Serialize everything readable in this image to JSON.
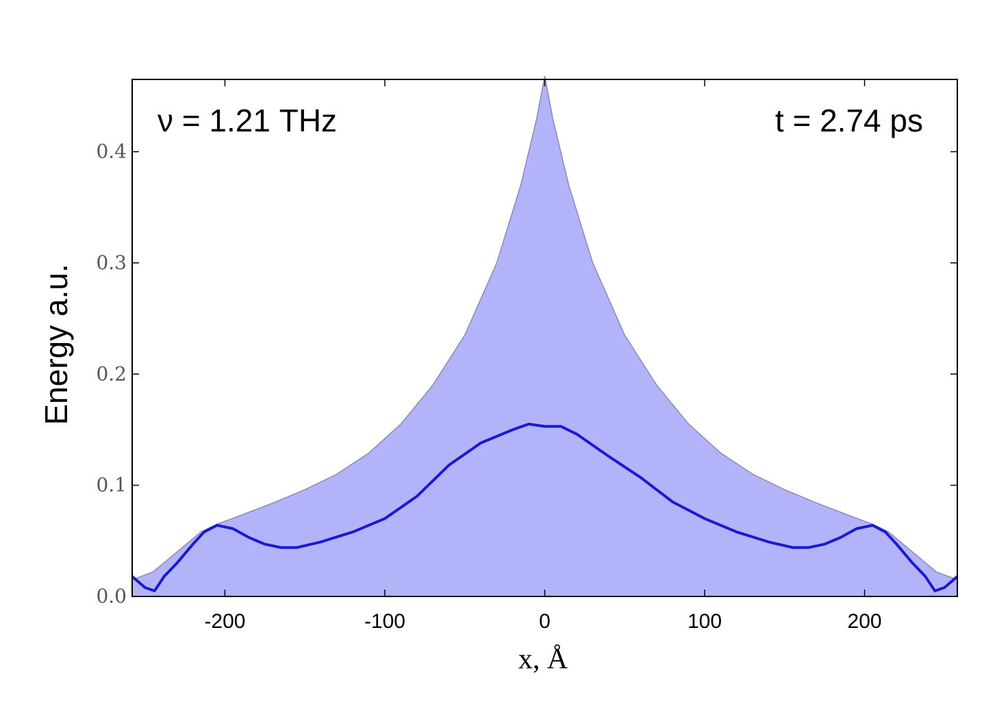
{
  "chart_data": {
    "type": "area",
    "xlabel": "x, Å",
    "ylabel": "Energy a.u.",
    "xlim": [
      -258,
      258
    ],
    "ylim": [
      0,
      0.465
    ],
    "x_ticks": [
      -200,
      -100,
      0,
      100,
      200
    ],
    "x_tick_labels": [
      "-200",
      "-100",
      "0",
      "100",
      "200"
    ],
    "y_ticks": [
      0.0,
      0.1,
      0.2,
      0.3,
      0.4
    ],
    "y_tick_labels": [
      "0.0",
      "0.1",
      "0.2",
      "0.3",
      "0.4"
    ],
    "grid": false,
    "annotations": {
      "frequency": "ν = 1.21 THz",
      "time": "t = 2.74 ps"
    },
    "colors": {
      "fill": "#b3b3fa",
      "envelope_edge": "#8a8ab4",
      "line": "#1a1ad2"
    },
    "series": [
      {
        "kind": "envelope",
        "x": [
          -258,
          -245,
          -230,
          -215,
          -205,
          -190,
          -170,
          -150,
          -130,
          -110,
          -90,
          -70,
          -50,
          -30,
          -15,
          -5,
          0,
          5,
          15,
          30,
          50,
          70,
          90,
          110,
          130,
          150,
          170,
          190,
          205,
          215,
          230,
          245,
          258
        ],
        "y": [
          0.015,
          0.022,
          0.04,
          0.058,
          0.065,
          0.073,
          0.084,
          0.096,
          0.11,
          0.129,
          0.155,
          0.19,
          0.235,
          0.3,
          0.37,
          0.43,
          0.468,
          0.43,
          0.37,
          0.3,
          0.235,
          0.19,
          0.155,
          0.129,
          0.11,
          0.096,
          0.084,
          0.073,
          0.065,
          0.058,
          0.04,
          0.022,
          0.015
        ]
      },
      {
        "kind": "line",
        "x": [
          -258,
          -250,
          -244,
          -238,
          -230,
          -220,
          -213,
          -205,
          -195,
          -185,
          -175,
          -165,
          -155,
          -140,
          -120,
          -100,
          -80,
          -60,
          -40,
          -20,
          -10,
          0,
          10,
          20,
          40,
          60,
          80,
          100,
          120,
          140,
          155,
          165,
          175,
          185,
          195,
          205,
          213,
          220,
          230,
          238,
          244,
          250,
          258
        ],
        "y": [
          0.018,
          0.008,
          0.005,
          0.018,
          0.03,
          0.047,
          0.058,
          0.064,
          0.061,
          0.053,
          0.047,
          0.044,
          0.044,
          0.049,
          0.058,
          0.07,
          0.09,
          0.118,
          0.138,
          0.15,
          0.155,
          0.153,
          0.153,
          0.146,
          0.126,
          0.107,
          0.085,
          0.07,
          0.058,
          0.049,
          0.044,
          0.044,
          0.047,
          0.053,
          0.061,
          0.064,
          0.058,
          0.047,
          0.03,
          0.018,
          0.005,
          0.008,
          0.018
        ]
      }
    ]
  }
}
